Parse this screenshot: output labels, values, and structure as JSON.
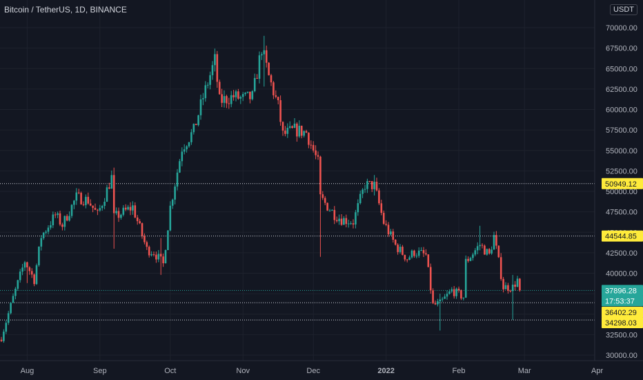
{
  "header": {
    "symbol_title": "Bitcoin / TetherUS, 1D, BINANCE",
    "currency_button": "USDT"
  },
  "colors": {
    "background": "#131722",
    "grid": "#1e222d",
    "up": "#26a69a",
    "down": "#ef5350",
    "text": "#b2b5be",
    "level_label": "#ffeb3b"
  },
  "chart_data": {
    "type": "candlestick",
    "x_ticks": [
      "Aug",
      "Sep",
      "Oct",
      "Nov",
      "Dec",
      "2022",
      "Feb",
      "Mar",
      "Apr"
    ],
    "y_ticks": [
      "30000.00",
      "32500.00",
      "35000.00",
      "37500.00",
      "40000.00",
      "42500.00",
      "45000.00",
      "47500.00",
      "50000.00",
      "52500.00",
      "55000.00",
      "57500.00",
      "60000.00",
      "62500.00",
      "65000.00",
      "67500.00",
      "70000.00"
    ],
    "ylim": [
      29500,
      71500
    ],
    "horizontal_levels": [
      {
        "value": 50949.12,
        "label": "50949.12"
      },
      {
        "value": 44544.85,
        "label": "44544.85"
      },
      {
        "value": 36402.29,
        "label": "36402.29"
      },
      {
        "value": 34298.03,
        "label": "34298.03"
      }
    ],
    "last_price": {
      "value": 37896.28,
      "label": "37896.28",
      "countdown": "17:53:37"
    },
    "close_path": [
      [
        "2021-07-21",
        32200
      ],
      [
        "2021-07-26",
        37000
      ],
      [
        "2021-07-31",
        41500
      ],
      [
        "2021-08-04",
        39200
      ],
      [
        "2021-08-07",
        44500
      ],
      [
        "2021-08-13",
        47100
      ],
      [
        "2021-08-16",
        45900
      ],
      [
        "2021-08-22",
        49300
      ],
      [
        "2021-08-27",
        48900
      ],
      [
        "2021-08-31",
        47100
      ],
      [
        "2021-09-06",
        51700
      ],
      [
        "2021-09-07",
        46800
      ],
      [
        "2021-09-15",
        48100
      ],
      [
        "2021-09-21",
        42900
      ],
      [
        "2021-09-24",
        42600
      ],
      [
        "2021-09-28",
        41100
      ],
      [
        "2021-10-01",
        48100
      ],
      [
        "2021-10-06",
        55300
      ],
      [
        "2021-10-11",
        57400
      ],
      [
        "2021-10-15",
        61500
      ],
      [
        "2021-10-20",
        66000
      ],
      [
        "2021-10-22",
        61000
      ],
      [
        "2021-10-28",
        61600
      ],
      [
        "2021-11-01",
        61300
      ],
      [
        "2021-11-05",
        61500
      ],
      [
        "2021-11-09",
        67500
      ],
      [
        "2021-11-12",
        64000
      ],
      [
        "2021-11-16",
        60400
      ],
      [
        "2021-11-18",
        56900
      ],
      [
        "2021-11-23",
        57500
      ],
      [
        "2021-11-28",
        57200
      ],
      [
        "2021-12-03",
        53500
      ],
      [
        "2021-12-04",
        49200
      ],
      [
        "2021-12-10",
        47200
      ],
      [
        "2021-12-13",
        46600
      ],
      [
        "2021-12-18",
        46300
      ],
      [
        "2021-12-23",
        50800
      ],
      [
        "2021-12-27",
        50700
      ],
      [
        "2021-12-31",
        46200
      ],
      [
        "2022-01-05",
        43400
      ],
      [
        "2022-01-10",
        41800
      ],
      [
        "2022-01-13",
        42600
      ],
      [
        "2022-01-18",
        42200
      ],
      [
        "2022-01-21",
        36100
      ],
      [
        "2022-01-24",
        36300
      ],
      [
        "2022-01-29",
        37900
      ],
      [
        "2022-02-03",
        37100
      ],
      [
        "2022-02-04",
        41400
      ],
      [
        "2022-02-10",
        43500
      ],
      [
        "2022-02-14",
        42200
      ],
      [
        "2022-02-16",
        44500
      ],
      [
        "2022-02-20",
        38300
      ],
      [
        "2022-02-24",
        38300
      ],
      [
        "2022-02-26",
        39200
      ],
      [
        "2022-02-27",
        37896
      ]
    ],
    "wick_spikes": [
      [
        "2021-08-01",
        40100,
        38800
      ],
      [
        "2021-09-07",
        52900,
        43000
      ],
      [
        "2021-09-27",
        44300,
        39800
      ],
      [
        "2021-11-10",
        69000,
        62800
      ],
      [
        "2021-12-04",
        53900,
        42000
      ],
      [
        "2021-12-27",
        52000,
        49500
      ],
      [
        "2022-01-24",
        37500,
        33000
      ],
      [
        "2022-02-10",
        45800,
        43200
      ],
      [
        "2022-02-24",
        39800,
        34300
      ]
    ]
  }
}
